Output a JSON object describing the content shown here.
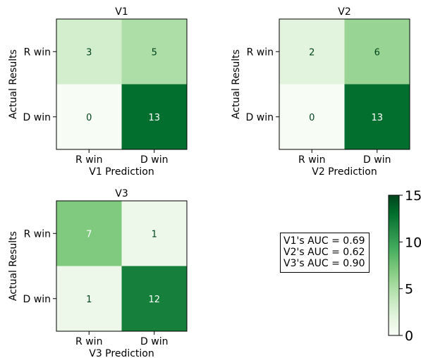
{
  "chart_data": [
    {
      "type": "heatmap",
      "title": "V1",
      "xlabel": "V1 Prediction",
      "ylabel": "Actual Results",
      "x_categories": [
        "R win",
        "D win"
      ],
      "y_categories": [
        "R win",
        "D win"
      ],
      "values": [
        [
          3,
          5
        ],
        [
          0,
          13
        ]
      ]
    },
    {
      "type": "heatmap",
      "title": "V2",
      "xlabel": "V2 Prediction",
      "ylabel": "Actual Results",
      "x_categories": [
        "R win",
        "D win"
      ],
      "y_categories": [
        "R win",
        "D win"
      ],
      "values": [
        [
          2,
          6
        ],
        [
          0,
          13
        ]
      ]
    },
    {
      "type": "heatmap",
      "title": "V3",
      "xlabel": "V3 Prediction",
      "ylabel": "Actual Results",
      "x_categories": [
        "R win",
        "D win"
      ],
      "y_categories": [
        "R win",
        "D win"
      ],
      "values": [
        [
          7,
          1
        ],
        [
          1,
          12
        ]
      ]
    }
  ],
  "colorbar": {
    "range": [
      0,
      15
    ],
    "ticks": [
      "0",
      "5",
      "10",
      "15"
    ],
    "colormap": "Greens",
    "low_color": "#f7fcf5",
    "high_color": "#00441b"
  },
  "auc_box": {
    "lines": [
      "V1's AUC = 0.69",
      "V2's AUC = 0.62",
      "V3's AUC = 0.90"
    ]
  }
}
